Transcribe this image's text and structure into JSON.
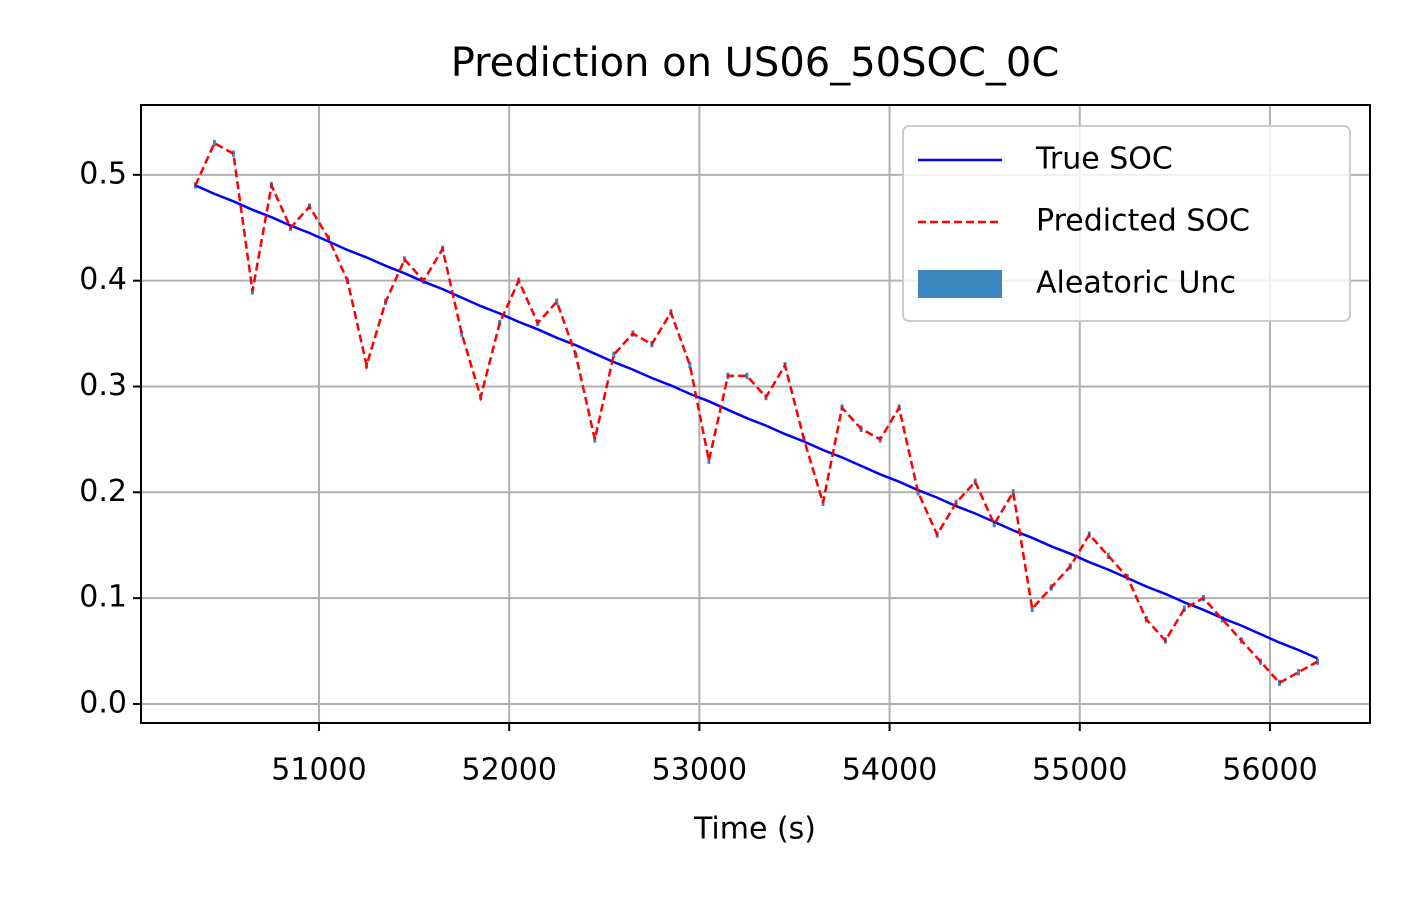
{
  "chart_data": {
    "type": "line",
    "title": "Prediction on US06_50SOC_0C",
    "xlabel": "Time (s)",
    "x": [
      50350,
      50450,
      50550,
      50650,
      50750,
      50850,
      50950,
      51050,
      51150,
      51250,
      51350,
      51450,
      51550,
      51650,
      51750,
      51850,
      51950,
      52050,
      52150,
      52250,
      52350,
      52450,
      52550,
      52650,
      52750,
      52850,
      52950,
      53050,
      53150,
      53250,
      53350,
      53450,
      53550,
      53650,
      53750,
      53850,
      53950,
      54050,
      54150,
      54250,
      54350,
      54450,
      54550,
      54650,
      54750,
      54850,
      54950,
      55050,
      55150,
      55250,
      55350,
      55450,
      55550,
      55650,
      55750,
      55850,
      55950,
      56050,
      56150,
      56250
    ],
    "series": [
      {
        "name": "True SOC",
        "color": "#0000ff",
        "values": [
          0.49,
          0.482,
          0.475,
          0.467,
          0.46,
          0.452,
          0.445,
          0.437,
          0.429,
          0.422,
          0.414,
          0.407,
          0.399,
          0.392,
          0.384,
          0.376,
          0.369,
          0.361,
          0.354,
          0.346,
          0.339,
          0.331,
          0.323,
          0.316,
          0.308,
          0.301,
          0.293,
          0.286,
          0.278,
          0.27,
          0.263,
          0.255,
          0.248,
          0.24,
          0.233,
          0.225,
          0.217,
          0.21,
          0.202,
          0.195,
          0.187,
          0.18,
          0.172,
          0.164,
          0.157,
          0.149,
          0.142,
          0.134,
          0.127,
          0.119,
          0.111,
          0.104,
          0.096,
          0.089,
          0.081,
          0.074,
          0.066,
          0.058,
          0.051,
          0.043
        ]
      },
      {
        "name": "Predicted SOC",
        "color": "#ff0000",
        "dashed": true,
        "values": [
          0.49,
          0.53,
          0.52,
          0.39,
          0.49,
          0.45,
          0.47,
          0.44,
          0.4,
          0.32,
          0.38,
          0.42,
          0.4,
          0.43,
          0.35,
          0.29,
          0.36,
          0.4,
          0.36,
          0.38,
          0.33,
          0.25,
          0.33,
          0.35,
          0.34,
          0.37,
          0.32,
          0.23,
          0.31,
          0.31,
          0.29,
          0.32,
          0.25,
          0.19,
          0.28,
          0.26,
          0.25,
          0.28,
          0.2,
          0.16,
          0.19,
          0.21,
          0.17,
          0.2,
          0.09,
          0.11,
          0.13,
          0.16,
          0.14,
          0.12,
          0.08,
          0.06,
          0.09,
          0.1,
          0.08,
          0.06,
          0.04,
          0.02,
          0.03,
          0.04
        ]
      },
      {
        "name": "Aleatoric Unc",
        "color": "#3a87c0",
        "values": [
          0.003,
          0.003,
          0.003,
          0.003,
          0.003,
          0.003,
          0.003,
          0.003,
          0.003,
          0.003,
          0.003,
          0.003,
          0.003,
          0.003,
          0.003,
          0.003,
          0.003,
          0.003,
          0.003,
          0.003,
          0.003,
          0.003,
          0.003,
          0.003,
          0.003,
          0.003,
          0.003,
          0.003,
          0.003,
          0.003,
          0.003,
          0.003,
          0.003,
          0.003,
          0.003,
          0.003,
          0.003,
          0.003,
          0.003,
          0.003,
          0.003,
          0.003,
          0.003,
          0.003,
          0.003,
          0.003,
          0.003,
          0.003,
          0.003,
          0.003,
          0.003,
          0.003,
          0.003,
          0.003,
          0.003,
          0.003,
          0.003,
          0.003,
          0.003,
          0.003
        ]
      }
    ],
    "xlim": [
      50064,
      56526
    ],
    "xticks": [
      51000,
      52000,
      53000,
      54000,
      55000,
      56000
    ],
    "ylim": [
      -0.018,
      0.566
    ],
    "yticks": [
      {
        "value": 0,
        "label": "0.0"
      },
      0.1,
      0.2,
      0.3,
      0.4,
      0.5
    ],
    "grid": true,
    "legend": "upper right"
  }
}
